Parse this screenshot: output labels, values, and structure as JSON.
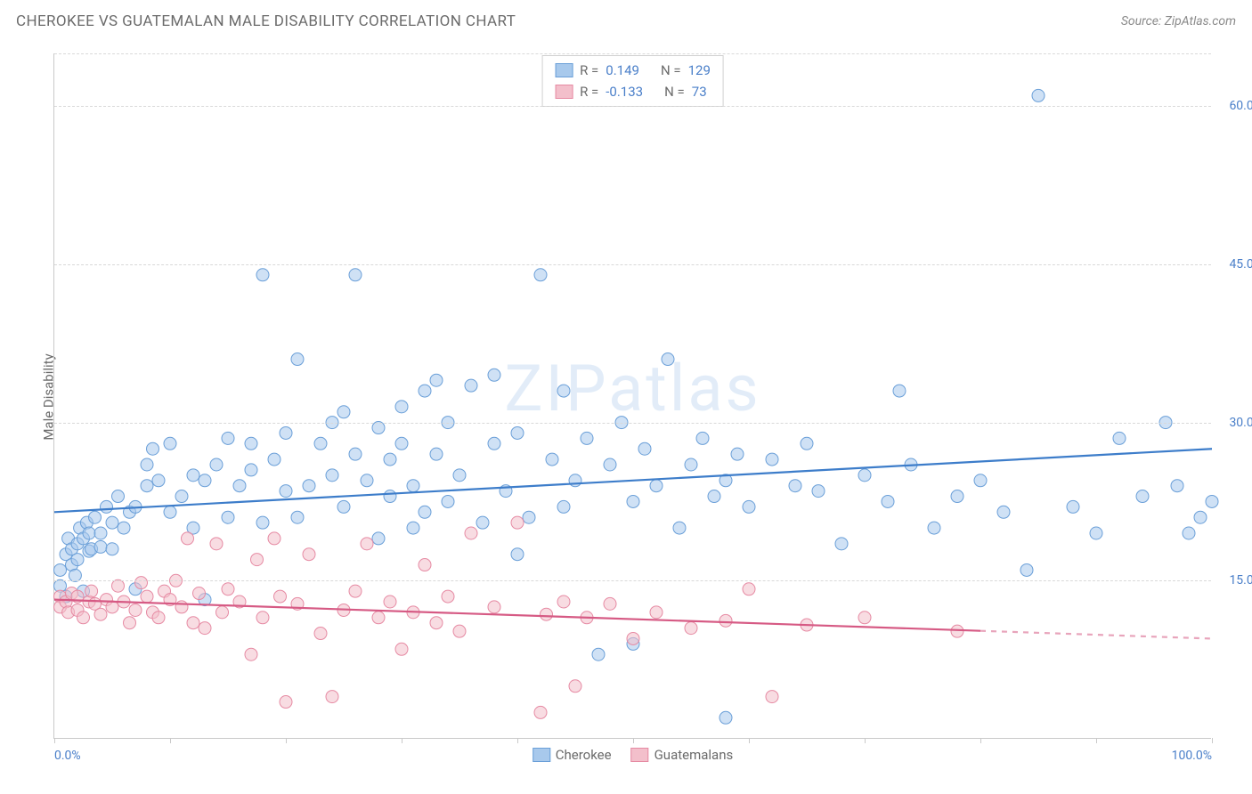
{
  "title": "CHEROKEE VS GUATEMALAN MALE DISABILITY CORRELATION CHART",
  "source_label": "Source: ZipAtlas.com",
  "ylabel": "Male Disability",
  "watermark_text": "ZIPatlas",
  "colors": {
    "series_a_fill": "#a8c9ec",
    "series_a_stroke": "#6a9fd8",
    "series_a_line": "#3d7dca",
    "series_b_fill": "#f3bfcb",
    "series_b_stroke": "#e68aa3",
    "series_b_line": "#d65a84",
    "grid": "#d9d9d9",
    "axis": "#c9c9c9",
    "text_muted": "#6b6b6b",
    "tick_blue": "#4a7fc9",
    "background": "#ffffff"
  },
  "chart": {
    "type": "scatter",
    "xlim": [
      0,
      100
    ],
    "ylim": [
      0,
      65
    ],
    "x_ticks": [
      0,
      10,
      20,
      30,
      40,
      50,
      60,
      70,
      80,
      90,
      100
    ],
    "x_tick_labels_shown": {
      "0": "0.0%",
      "100": "100.0%"
    },
    "y_gridlines": [
      15,
      30,
      45,
      60
    ],
    "y_labels": {
      "15": "15.0%",
      "30": "30.0%",
      "45": "45.0%",
      "60": "60.0%"
    },
    "marker_radius": 7,
    "marker_opacity": 0.55,
    "line_width": 2.2,
    "series": [
      {
        "name": "Cherokee",
        "color_key": "a",
        "R": "0.149",
        "N": "129",
        "trend": {
          "x0": 0,
          "y0": 21.5,
          "x1": 100,
          "y1": 27.5,
          "dashed_from": null
        },
        "points": [
          [
            0.5,
            14.5
          ],
          [
            0.5,
            16
          ],
          [
            1,
            17.5
          ],
          [
            1,
            13.5
          ],
          [
            1.2,
            19
          ],
          [
            1.5,
            18
          ],
          [
            1.5,
            16.5
          ],
          [
            1.8,
            15.5
          ],
          [
            2,
            18.5
          ],
          [
            2,
            17
          ],
          [
            2.2,
            20
          ],
          [
            2.5,
            19
          ],
          [
            2.5,
            14
          ],
          [
            2.8,
            20.5
          ],
          [
            3,
            19.5
          ],
          [
            3,
            17.8
          ],
          [
            3.2,
            18
          ],
          [
            3.5,
            21
          ],
          [
            4,
            19.5
          ],
          [
            4,
            18.2
          ],
          [
            4.5,
            22
          ],
          [
            5,
            20.5
          ],
          [
            5,
            18
          ],
          [
            5.5,
            23
          ],
          [
            6,
            20
          ],
          [
            6.5,
            21.5
          ],
          [
            7,
            22
          ],
          [
            7,
            14.2
          ],
          [
            8,
            24
          ],
          [
            8,
            26
          ],
          [
            8.5,
            27.5
          ],
          [
            9,
            24.5
          ],
          [
            10,
            21.5
          ],
          [
            10,
            28
          ],
          [
            11,
            23
          ],
          [
            12,
            20
          ],
          [
            12,
            25
          ],
          [
            13,
            24.5
          ],
          [
            13,
            13.2
          ],
          [
            14,
            26
          ],
          [
            15,
            21
          ],
          [
            15,
            28.5
          ],
          [
            16,
            24
          ],
          [
            17,
            25.5
          ],
          [
            17,
            28
          ],
          [
            18,
            20.5
          ],
          [
            18,
            44
          ],
          [
            19,
            26.5
          ],
          [
            20,
            23.5
          ],
          [
            20,
            29
          ],
          [
            21,
            21
          ],
          [
            21,
            36
          ],
          [
            22,
            24
          ],
          [
            23,
            28
          ],
          [
            24,
            25
          ],
          [
            24,
            30
          ],
          [
            25,
            22
          ],
          [
            25,
            31
          ],
          [
            26,
            27
          ],
          [
            26,
            44
          ],
          [
            27,
            24.5
          ],
          [
            28,
            29.5
          ],
          [
            28,
            19
          ],
          [
            29,
            23
          ],
          [
            29,
            26.5
          ],
          [
            30,
            31.5
          ],
          [
            30,
            28
          ],
          [
            31,
            24
          ],
          [
            31,
            20
          ],
          [
            32,
            21.5
          ],
          [
            32,
            33
          ],
          [
            33,
            27
          ],
          [
            33,
            34
          ],
          [
            34,
            22.5
          ],
          [
            34,
            30
          ],
          [
            35,
            25
          ],
          [
            36,
            33.5
          ],
          [
            37,
            20.5
          ],
          [
            38,
            28
          ],
          [
            38,
            34.5
          ],
          [
            39,
            23.5
          ],
          [
            40,
            17.5
          ],
          [
            40,
            29
          ],
          [
            41,
            21
          ],
          [
            42,
            44
          ],
          [
            43,
            26.5
          ],
          [
            44,
            22
          ],
          [
            44,
            33
          ],
          [
            45,
            24.5
          ],
          [
            46,
            28.5
          ],
          [
            47,
            8
          ],
          [
            48,
            26
          ],
          [
            49,
            30
          ],
          [
            50,
            9
          ],
          [
            50,
            22.5
          ],
          [
            51,
            27.5
          ],
          [
            52,
            24
          ],
          [
            53,
            36
          ],
          [
            54,
            20
          ],
          [
            55,
            26
          ],
          [
            56,
            28.5
          ],
          [
            57,
            23
          ],
          [
            58,
            24.5
          ],
          [
            58,
            2
          ],
          [
            59,
            27
          ],
          [
            60,
            22
          ],
          [
            62,
            26.5
          ],
          [
            64,
            24
          ],
          [
            65,
            28
          ],
          [
            66,
            23.5
          ],
          [
            68,
            18.5
          ],
          [
            70,
            25
          ],
          [
            72,
            22.5
          ],
          [
            73,
            33
          ],
          [
            74,
            26
          ],
          [
            76,
            20
          ],
          [
            78,
            23
          ],
          [
            80,
            24.5
          ],
          [
            82,
            21.5
          ],
          [
            84,
            16
          ],
          [
            85,
            61
          ],
          [
            88,
            22
          ],
          [
            90,
            19.5
          ],
          [
            92,
            28.5
          ],
          [
            94,
            23
          ],
          [
            96,
            30
          ],
          [
            97,
            24
          ],
          [
            98,
            19.5
          ],
          [
            99,
            21
          ],
          [
            100,
            22.5
          ]
        ]
      },
      {
        "name": "Guatemalans",
        "color_key": "b",
        "R": "-0.133",
        "N": "73",
        "trend": {
          "x0": 0,
          "y0": 13.2,
          "x1": 100,
          "y1": 9.5,
          "dashed_from": 80
        },
        "points": [
          [
            0.5,
            13.5
          ],
          [
            0.5,
            12.5
          ],
          [
            1,
            13
          ],
          [
            1.2,
            12
          ],
          [
            1.5,
            13.8
          ],
          [
            2,
            12.2
          ],
          [
            2,
            13.5
          ],
          [
            2.5,
            11.5
          ],
          [
            3,
            13
          ],
          [
            3.2,
            14
          ],
          [
            3.5,
            12.8
          ],
          [
            4,
            11.8
          ],
          [
            4.5,
            13.2
          ],
          [
            5,
            12.5
          ],
          [
            5.5,
            14.5
          ],
          [
            6,
            13
          ],
          [
            6.5,
            11
          ],
          [
            7,
            12.2
          ],
          [
            7.5,
            14.8
          ],
          [
            8,
            13.5
          ],
          [
            8.5,
            12
          ],
          [
            9,
            11.5
          ],
          [
            9.5,
            14
          ],
          [
            10,
            13.2
          ],
          [
            10.5,
            15
          ],
          [
            11,
            12.5
          ],
          [
            11.5,
            19
          ],
          [
            12,
            11
          ],
          [
            12.5,
            13.8
          ],
          [
            13,
            10.5
          ],
          [
            14,
            18.5
          ],
          [
            14.5,
            12
          ],
          [
            15,
            14.2
          ],
          [
            16,
            13
          ],
          [
            17,
            8
          ],
          [
            17.5,
            17
          ],
          [
            18,
            11.5
          ],
          [
            19,
            19
          ],
          [
            19.5,
            13.5
          ],
          [
            20,
            3.5
          ],
          [
            21,
            12.8
          ],
          [
            22,
            17.5
          ],
          [
            23,
            10
          ],
          [
            24,
            4
          ],
          [
            25,
            12.2
          ],
          [
            26,
            14
          ],
          [
            27,
            18.5
          ],
          [
            28,
            11.5
          ],
          [
            29,
            13
          ],
          [
            30,
            8.5
          ],
          [
            31,
            12
          ],
          [
            32,
            16.5
          ],
          [
            33,
            11
          ],
          [
            34,
            13.5
          ],
          [
            35,
            10.2
          ],
          [
            36,
            19.5
          ],
          [
            38,
            12.5
          ],
          [
            40,
            20.5
          ],
          [
            42,
            2.5
          ],
          [
            42.5,
            11.8
          ],
          [
            44,
            13
          ],
          [
            45,
            5
          ],
          [
            46,
            11.5
          ],
          [
            48,
            12.8
          ],
          [
            50,
            9.5
          ],
          [
            52,
            12
          ],
          [
            55,
            10.5
          ],
          [
            58,
            11.2
          ],
          [
            60,
            14.2
          ],
          [
            62,
            4
          ],
          [
            65,
            10.8
          ],
          [
            70,
            11.5
          ],
          [
            78,
            10.2
          ]
        ]
      }
    ]
  },
  "legend_top": {
    "r_label": "R =",
    "n_label": "N ="
  },
  "legend_bottom": {
    "series_a_label": "Cherokee",
    "series_b_label": "Guatemalans"
  }
}
